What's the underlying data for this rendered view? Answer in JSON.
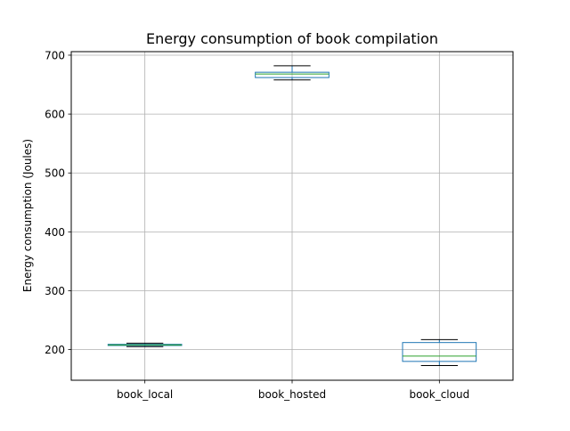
{
  "chart_data": {
    "type": "box",
    "title": "Energy consumption of book compilation",
    "xlabel": "",
    "ylabel": "Energy consumption (Joules)",
    "ylim": [
      148,
      706
    ],
    "yticks": [
      200,
      300,
      400,
      500,
      600,
      700
    ],
    "grid": true,
    "categories": [
      "book_local",
      "book_hosted",
      "book_cloud"
    ],
    "boxes": [
      {
        "name": "book_local",
        "whisker_low": 205,
        "q1": 207,
        "median": 208,
        "q3": 209,
        "whisker_high": 211
      },
      {
        "name": "book_hosted",
        "whisker_low": 658,
        "q1": 662,
        "median": 668,
        "q3": 671,
        "whisker_high": 682
      },
      {
        "name": "book_cloud",
        "whisker_low": 173,
        "q1": 180,
        "median": 189,
        "q3": 212,
        "whisker_high": 217
      }
    ],
    "colors": {
      "box": "#1f77b4",
      "median": "#2ca02c",
      "whisker": "#000000",
      "grid": "#b0b0b0"
    }
  }
}
